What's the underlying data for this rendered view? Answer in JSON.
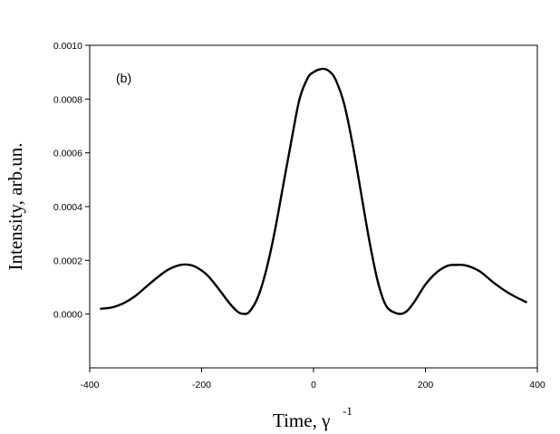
{
  "chart_data": {
    "type": "line",
    "panel_label": "(b)",
    "xlabel": "Time, γ",
    "xlabel_superscript": "-1",
    "ylabel": "Intensity, arb.un.",
    "xlim": [
      -400,
      400
    ],
    "ylim": [
      -0.0002,
      0.001
    ],
    "xticks": [
      -400,
      -200,
      0,
      200,
      400
    ],
    "yticks": [
      "0.0000",
      "0.0002",
      "0.0004",
      "0.0006",
      "0.0008",
      "0.0010"
    ],
    "grid": false,
    "series": [
      {
        "color": "#000000",
        "x": [
          -380,
          -360,
          -340,
          -320,
          -300,
          -280,
          -260,
          -240,
          -225,
          -210,
          -190,
          -170,
          -150,
          -135,
          -125,
          -115,
          -100,
          -85,
          -70,
          -55,
          -40,
          -25,
          -10,
          0,
          10,
          20,
          30,
          40,
          55,
          70,
          85,
          100,
          115,
          130,
          150,
          165,
          180,
          200,
          220,
          240,
          255,
          270,
          285,
          300,
          320,
          340,
          360,
          380
        ],
        "y": [
          2e-05,
          2.5e-05,
          4e-05,
          6.5e-05,
          0.0001,
          0.000135,
          0.000165,
          0.000182,
          0.000184,
          0.000175,
          0.000145,
          9.5e-05,
          4e-05,
          8e-06,
          1e-06,
          8e-06,
          6e-05,
          0.00016,
          0.0003,
          0.00047,
          0.00064,
          0.0008,
          0.00088,
          0.0009,
          0.00091,
          0.000912,
          0.0009,
          0.00087,
          0.00078,
          0.00063,
          0.00045,
          0.00027,
          0.00012,
          3e-05,
          2e-06,
          8e-06,
          4.5e-05,
          0.00011,
          0.000155,
          0.00018,
          0.000183,
          0.000182,
          0.000172,
          0.000155,
          0.00012,
          9e-05,
          6.5e-05,
          4.5e-05
        ]
      }
    ]
  }
}
